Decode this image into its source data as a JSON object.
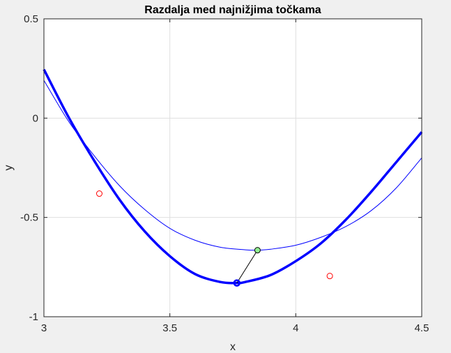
{
  "chart_data": {
    "type": "line",
    "title": "Razdalja med najnižjima točkama",
    "xlabel": "x",
    "ylabel": "y",
    "xlim": [
      3,
      4.5
    ],
    "ylim": [
      -1,
      0.5
    ],
    "xticks": [
      3,
      3.5,
      4,
      4.5
    ],
    "xtick_labels": [
      "3",
      "3.5",
      "4",
      "4.5"
    ],
    "yticks": [
      -1,
      -0.5,
      0,
      0.5
    ],
    "ytick_labels": [
      "-1",
      "-0.5",
      "0",
      "0.5"
    ],
    "grid": true,
    "series": [
      {
        "kind": "curve",
        "style": "thick",
        "color": "#0000ff",
        "x": [
          3.0,
          3.1,
          3.2,
          3.3,
          3.4,
          3.5,
          3.6,
          3.7,
          3.766,
          3.8,
          3.9,
          4.0,
          4.1,
          4.2,
          4.3,
          4.4,
          4.5
        ],
        "y": [
          0.245,
          0.0,
          -0.215,
          -0.41,
          -0.57,
          -0.695,
          -0.785,
          -0.825,
          -0.83,
          -0.825,
          -0.79,
          -0.72,
          -0.63,
          -0.51,
          -0.37,
          -0.22,
          -0.07
        ]
      },
      {
        "kind": "curve",
        "style": "thin",
        "color": "#0000ff",
        "x": [
          3.0,
          3.1,
          3.2,
          3.3,
          3.4,
          3.5,
          3.6,
          3.7,
          3.8,
          3.848,
          3.9,
          4.0,
          4.1,
          4.2,
          4.3,
          4.4,
          4.5
        ],
        "y": [
          0.19,
          -0.02,
          -0.19,
          -0.34,
          -0.46,
          -0.555,
          -0.615,
          -0.65,
          -0.663,
          -0.665,
          -0.66,
          -0.64,
          -0.6,
          -0.545,
          -0.465,
          -0.35,
          -0.2
        ]
      },
      {
        "kind": "points",
        "marker": "open-circle",
        "color": "#ff0000",
        "x": [
          3.22,
          4.135
        ],
        "y": [
          -0.38,
          -0.795
        ]
      }
    ],
    "minimum_points": [
      {
        "x": 3.766,
        "y": -0.83,
        "color": "#0000ff",
        "marker": "open-circle-thick"
      },
      {
        "x": 3.848,
        "y": -0.665,
        "color": "#90ee90",
        "marker": "filled-circle"
      }
    ],
    "connector": {
      "from": [
        3.766,
        -0.83
      ],
      "to": [
        3.848,
        -0.665
      ],
      "color": "#000000"
    }
  }
}
